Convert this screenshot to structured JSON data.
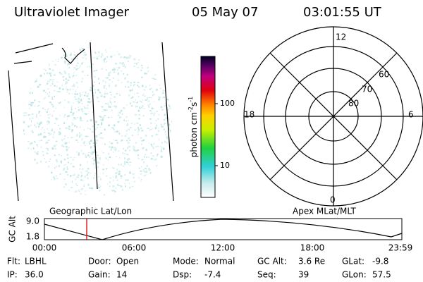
{
  "header": {
    "instrument": "Ultraviolet Imager",
    "date": "05 May 07",
    "time": "03:01:55 UT"
  },
  "image_panel": {
    "label": "Geographic Lat/Lon"
  },
  "colorbar": {
    "unit": {
      "base": "photon cm",
      "exp1": "-2",
      "mid": "s",
      "exp2": "-1"
    },
    "ticks": [
      "100",
      "10"
    ]
  },
  "polar_panel": {
    "label": "Apex MLat/MLT",
    "mlt": {
      "top": "12",
      "right": "6",
      "bottom": "0",
      "left": "18"
    },
    "mlat": [
      "80",
      "70",
      "60"
    ]
  },
  "timeline": {
    "ylabel": "GC Alt",
    "yticks": [
      "9.0",
      "1.8"
    ],
    "xticks": [
      "00:00",
      "06:00",
      "12:00",
      "18:00",
      "23:59"
    ]
  },
  "info": [
    [
      {
        "label": "Flt:",
        "value": "LBHL"
      },
      {
        "label": "Door:",
        "value": "Open"
      },
      {
        "label": "Mode:",
        "value": "Normal"
      },
      {
        "label": "GC Alt:",
        "value": "3.6 Re"
      },
      {
        "label": "GLat:",
        "value": "-9.8"
      }
    ],
    [
      {
        "label": "IP:",
        "value": "36.0"
      },
      {
        "label": "Gain:",
        "value": "14"
      },
      {
        "label": "Dsp:",
        "value": "-7.4"
      },
      {
        "label": "Seq:",
        "value": "39"
      },
      {
        "label": "GLon:",
        "value": "57.5"
      }
    ]
  ]
}
